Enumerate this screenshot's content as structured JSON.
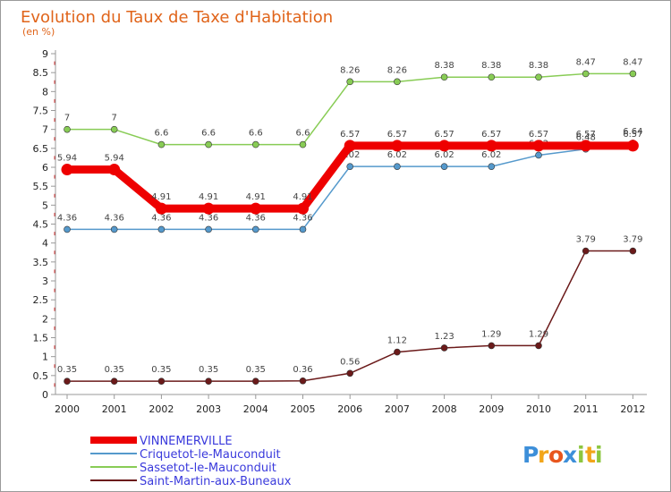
{
  "chart_data": {
    "type": "line",
    "title": "Evolution du Taux de Taxe d'Habitation",
    "unit_label": "(en %)",
    "x": [
      "2000",
      "2001",
      "2002",
      "2003",
      "2004",
      "2005",
      "2006",
      "2007",
      "2008",
      "2009",
      "2010",
      "2011",
      "2012"
    ],
    "y_ticks": [
      "0",
      "0.5",
      "1",
      "1.5",
      "2",
      "2.5",
      "3",
      "3.5",
      "4",
      "4.5",
      "5",
      "5.5",
      "6",
      "6.5",
      "7",
      "7.5",
      "8",
      "8.5",
      "9"
    ],
    "ylim": [
      0,
      9
    ],
    "grid": false,
    "legend_position": "bottom-left",
    "series": [
      {
        "name": "Sassetot-le-Mauconduit",
        "color": "#88cc55",
        "values": [
          7,
          7,
          6.6,
          6.6,
          6.6,
          6.6,
          8.26,
          8.26,
          8.38,
          8.38,
          8.38,
          8.47,
          8.47
        ],
        "labels": [
          "7",
          "7",
          "6.6",
          "6.6",
          "6.6",
          "6.6",
          "8.26",
          "8.26",
          "8.38",
          "8.38",
          "8.38",
          "8.47",
          "8.47"
        ]
      },
      {
        "name": "Criquetot-le-Mauconduit",
        "color": "#5599cc",
        "values": [
          4.36,
          4.36,
          4.36,
          4.36,
          4.36,
          4.36,
          6.02,
          6.02,
          6.02,
          6.02,
          6.32,
          6.48,
          6.64
        ],
        "labels": [
          "4.36",
          "4.36",
          "4.36",
          "4.36",
          "4.36",
          "4.36",
          "6.02",
          "6.02",
          "6.02",
          "6.02",
          "6.32",
          "6.48",
          "6.64"
        ]
      },
      {
        "name": "Saint-Martin-aux-Buneaux",
        "color": "#6b1a1a",
        "values": [
          0.35,
          0.35,
          0.35,
          0.35,
          0.35,
          0.36,
          0.56,
          1.12,
          1.23,
          1.29,
          1.29,
          3.79,
          3.79
        ],
        "labels": [
          "0.35",
          "0.35",
          "0.35",
          "0.35",
          "0.35",
          "0.36",
          "0.56",
          "1.12",
          "1.23",
          "1.29",
          "1.29",
          "3.79",
          "3.79"
        ]
      },
      {
        "name": "VINNEMERVILLE",
        "color": "#ee0000",
        "values": [
          5.94,
          5.94,
          4.91,
          4.91,
          4.91,
          4.91,
          6.57,
          6.57,
          6.57,
          6.57,
          6.57,
          6.57,
          6.57
        ],
        "labels": [
          "5.94",
          "5.94",
          "4.91",
          "4.91",
          "4.91",
          "4.91",
          "6.57",
          "6.57",
          "6.57",
          "6.57",
          "6.57",
          "6.57",
          "6.57"
        ]
      }
    ],
    "legend": [
      {
        "name": "VINNEMERVILLE",
        "color": "#ee0000",
        "text_color": "#3a3adc"
      },
      {
        "name": "Criquetot-le-Mauconduit",
        "color": "#5599cc",
        "text_color": "#3a3adc"
      },
      {
        "name": "Sassetot-le-Mauconduit",
        "color": "#88cc55",
        "text_color": "#3a3adc"
      },
      {
        "name": "Saint-Martin-aux-Buneaux",
        "color": "#6b1a1a",
        "text_color": "#3a3adc"
      }
    ]
  },
  "logo": {
    "letters": [
      "P",
      "r",
      "o",
      "x",
      "i",
      "t",
      "i"
    ],
    "colors": [
      "#3d8fd9",
      "#f2a51a",
      "#e8561e",
      "#3d8fd9",
      "#8dc63f",
      "#f2a51a",
      "#8dc63f"
    ]
  }
}
